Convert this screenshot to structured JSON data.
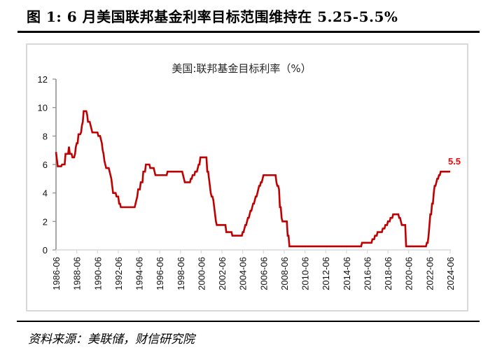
{
  "figure": {
    "title": "图 1: 6 月美国联邦基金利率目标范围维持在 5.25-5.5%",
    "source": "资料来源：美联储，财信研究院"
  },
  "colors": {
    "line": "#c00000",
    "end_label": "#ff0000",
    "y_axis": "#8c8c8c",
    "x_axis": "#d9d9d9",
    "frame": "#d9d9d9"
  },
  "chart_data": {
    "type": "line",
    "title": "美国:联邦基金目标利率（%）",
    "xlabel": "",
    "ylabel": "",
    "ylim": [
      0,
      12
    ],
    "y_ticks": [
      "0",
      "2",
      "4",
      "6",
      "8",
      "10",
      "12"
    ],
    "x_ticks": [
      "1986-06",
      "1988-06",
      "1990-06",
      "1992-06",
      "1994-06",
      "1996-06",
      "1998-06",
      "2000-06",
      "2002-06",
      "2004-06",
      "2006-06",
      "2008-06",
      "2010-06",
      "2012-06",
      "2014-06",
      "2016-06",
      "2018-06",
      "2020-06",
      "2022-06",
      "2024-06"
    ],
    "grid": false,
    "legend": null,
    "end_annotation": "5.5",
    "x_range": [
      "1986-06",
      "2024-06"
    ],
    "series": [
      {
        "name": "美国:联邦基金目标利率",
        "step_changes": [
          [
            "1986-06",
            6.875
          ],
          [
            "1986-07",
            6.375
          ],
          [
            "1986-08",
            5.875
          ],
          [
            "1987-01",
            6.0
          ],
          [
            "1987-05",
            6.75
          ],
          [
            "1987-09",
            7.25
          ],
          [
            "1987-10",
            6.75
          ],
          [
            "1988-01",
            6.5
          ],
          [
            "1988-04",
            6.75
          ],
          [
            "1988-05",
            7.25
          ],
          [
            "1988-06",
            7.5
          ],
          [
            "1988-08",
            8.125
          ],
          [
            "1988-11",
            8.25
          ],
          [
            "1988-12",
            8.75
          ],
          [
            "1989-01",
            9.0
          ],
          [
            "1989-02",
            9.75
          ],
          [
            "1989-06",
            9.5
          ],
          [
            "1989-07",
            9.0
          ],
          [
            "1989-10",
            8.75
          ],
          [
            "1989-11",
            8.5
          ],
          [
            "1989-12",
            8.25
          ],
          [
            "1990-07",
            8.0
          ],
          [
            "1990-10",
            7.75
          ],
          [
            "1990-11",
            7.5
          ],
          [
            "1990-12",
            7.0
          ],
          [
            "1991-01",
            6.75
          ],
          [
            "1991-02",
            6.25
          ],
          [
            "1991-03",
            6.0
          ],
          [
            "1991-04",
            5.75
          ],
          [
            "1991-08",
            5.5
          ],
          [
            "1991-09",
            5.25
          ],
          [
            "1991-10",
            5.0
          ],
          [
            "1991-11",
            4.5
          ],
          [
            "1991-12",
            4.0
          ],
          [
            "1992-04",
            3.75
          ],
          [
            "1992-07",
            3.25
          ],
          [
            "1992-09",
            3.0
          ],
          [
            "1994-02",
            3.25
          ],
          [
            "1994-03",
            3.5
          ],
          [
            "1994-04",
            3.75
          ],
          [
            "1994-05",
            4.25
          ],
          [
            "1994-08",
            4.75
          ],
          [
            "1994-11",
            5.5
          ],
          [
            "1995-02",
            6.0
          ],
          [
            "1995-07",
            5.75
          ],
          [
            "1995-12",
            5.5
          ],
          [
            "1996-01",
            5.25
          ],
          [
            "1997-03",
            5.5
          ],
          [
            "1998-09",
            5.25
          ],
          [
            "1998-10",
            5.0
          ],
          [
            "1998-11",
            4.75
          ],
          [
            "1999-06",
            5.0
          ],
          [
            "1999-08",
            5.25
          ],
          [
            "1999-11",
            5.5
          ],
          [
            "2000-02",
            5.75
          ],
          [
            "2000-03",
            6.0
          ],
          [
            "2000-05",
            6.5
          ],
          [
            "2001-01",
            5.5
          ],
          [
            "2001-03",
            5.0
          ],
          [
            "2001-04",
            4.5
          ],
          [
            "2001-05",
            4.0
          ],
          [
            "2001-06",
            3.75
          ],
          [
            "2001-08",
            3.5
          ],
          [
            "2001-09",
            3.0
          ],
          [
            "2001-10",
            2.5
          ],
          [
            "2001-11",
            2.0
          ],
          [
            "2001-12",
            1.75
          ],
          [
            "2002-11",
            1.25
          ],
          [
            "2003-06",
            1.0
          ],
          [
            "2004-06",
            1.25
          ],
          [
            "2004-08",
            1.5
          ],
          [
            "2004-09",
            1.75
          ],
          [
            "2004-11",
            2.0
          ],
          [
            "2004-12",
            2.25
          ],
          [
            "2005-02",
            2.5
          ],
          [
            "2005-03",
            2.75
          ],
          [
            "2005-05",
            3.0
          ],
          [
            "2005-06",
            3.25
          ],
          [
            "2005-08",
            3.5
          ],
          [
            "2005-09",
            3.75
          ],
          [
            "2005-11",
            4.0
          ],
          [
            "2005-12",
            4.25
          ],
          [
            "2006-01",
            4.5
          ],
          [
            "2006-03",
            4.75
          ],
          [
            "2006-05",
            5.0
          ],
          [
            "2006-06",
            5.25
          ],
          [
            "2007-09",
            4.75
          ],
          [
            "2007-10",
            4.5
          ],
          [
            "2007-12",
            4.25
          ],
          [
            "2008-01",
            3.0
          ],
          [
            "2008-03",
            2.25
          ],
          [
            "2008-04",
            2.0
          ],
          [
            "2008-10",
            1.0
          ],
          [
            "2008-12",
            0.25
          ],
          [
            "2015-12",
            0.5
          ],
          [
            "2016-12",
            0.75
          ],
          [
            "2017-03",
            1.0
          ],
          [
            "2017-06",
            1.25
          ],
          [
            "2017-12",
            1.5
          ],
          [
            "2018-03",
            1.75
          ],
          [
            "2018-06",
            2.0
          ],
          [
            "2018-09",
            2.25
          ],
          [
            "2018-12",
            2.5
          ],
          [
            "2019-07",
            2.25
          ],
          [
            "2019-09",
            2.0
          ],
          [
            "2019-10",
            1.75
          ],
          [
            "2020-03",
            0.25
          ],
          [
            "2022-03",
            0.5
          ],
          [
            "2022-05",
            1.0
          ],
          [
            "2022-06",
            1.75
          ],
          [
            "2022-07",
            2.5
          ],
          [
            "2022-09",
            3.25
          ],
          [
            "2022-11",
            4.0
          ],
          [
            "2022-12",
            4.5
          ],
          [
            "2023-02",
            4.75
          ],
          [
            "2023-03",
            5.0
          ],
          [
            "2023-05",
            5.25
          ],
          [
            "2023-07",
            5.5
          ],
          [
            "2024-06",
            5.5
          ]
        ]
      }
    ]
  }
}
